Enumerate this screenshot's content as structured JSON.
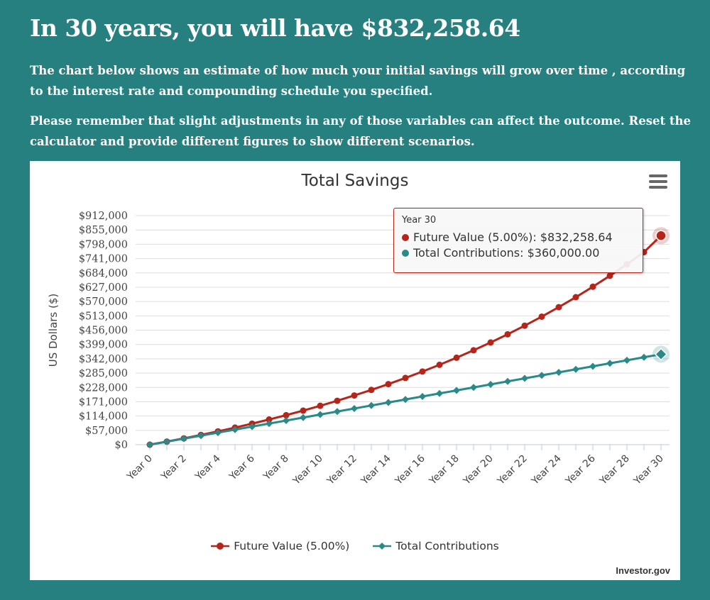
{
  "headline": "In 30 years, you will have $832,258.64",
  "paragraph1": "The chart below shows an estimate of how much your initial savings will grow over time , according to the interest rate and compounding schedule you specified.",
  "paragraph2": "Please remember that slight adjustments in any of those variables can affect the outcome. Reset the calculator and provide different figures to show different scenarios.",
  "credit": "Investor.gov",
  "menu_icon": "hamburger-menu-icon",
  "colors": {
    "background": "#278080",
    "future_value": "#b5251a",
    "contributions": "#2a8a8a"
  },
  "tooltip": {
    "title": "Year 30",
    "row1_label": "Future Value (5.00%):",
    "row1_value": "$832,258.64",
    "row2_label": "Total Contributions:",
    "row2_value": "$360,000.00"
  },
  "chart_data": {
    "type": "line",
    "title": "Total Savings",
    "xlabel": "",
    "ylabel": "US Dollars ($)",
    "categories": [
      "Year 0",
      "Year 1",
      "Year 2",
      "Year 3",
      "Year 4",
      "Year 5",
      "Year 6",
      "Year 7",
      "Year 8",
      "Year 9",
      "Year 10",
      "Year 11",
      "Year 12",
      "Year 13",
      "Year 14",
      "Year 15",
      "Year 16",
      "Year 17",
      "Year 18",
      "Year 19",
      "Year 20",
      "Year 21",
      "Year 22",
      "Year 23",
      "Year 24",
      "Year 25",
      "Year 26",
      "Year 27",
      "Year 28",
      "Year 29",
      "Year 30"
    ],
    "x_tick_labels": [
      "Year 0",
      "Year 2",
      "Year 4",
      "Year 6",
      "Year 8",
      "Year 10",
      "Year 12",
      "Year 14",
      "Year 16",
      "Year 18",
      "Year 20",
      "Year 22",
      "Year 24",
      "Year 26",
      "Year 28",
      "Year 30"
    ],
    "y_tick_labels": [
      "$0",
      "$57,000",
      "$114,000",
      "$171,000",
      "$228,000",
      "$285,000",
      "$342,000",
      "$399,000",
      "$456,000",
      "$513,000",
      "$570,000",
      "$627,000",
      "$684,000",
      "$741,000",
      "$798,000",
      "$855,000",
      "$912,000"
    ],
    "ylim": [
      0,
      912000
    ],
    "grid": true,
    "legend_position": "bottom",
    "series": [
      {
        "name": "Future Value (5.00%)",
        "color": "#b5251a",
        "marker": "circle",
        "values": [
          0,
          12300,
          25200,
          38800,
          53000,
          68000,
          83700,
          100200,
          117500,
          135700,
          154800,
          174800,
          195900,
          218000,
          241200,
          265600,
          291200,
          318000,
          346200,
          375800,
          406900,
          439500,
          473800,
          509700,
          547500,
          587200,
          628800,
          672500,
          718400,
          766500,
          832258.64
        ]
      },
      {
        "name": "Total Contributions",
        "color": "#2a8a8a",
        "marker": "diamond",
        "values": [
          0,
          12000,
          24000,
          36000,
          48000,
          60000,
          72000,
          84000,
          96000,
          108000,
          120000,
          132000,
          144000,
          156000,
          168000,
          180000,
          192000,
          204000,
          216000,
          228000,
          240000,
          252000,
          264000,
          276000,
          288000,
          300000,
          312000,
          324000,
          336000,
          348000,
          360000
        ]
      }
    ]
  }
}
